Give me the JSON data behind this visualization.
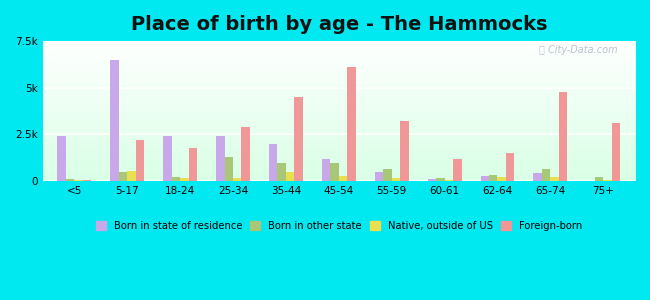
{
  "title": "Place of birth by age - The Hammocks",
  "categories": [
    "<5",
    "5-17",
    "18-24",
    "25-34",
    "35-44",
    "45-54",
    "55-59",
    "60-61",
    "62-64",
    "65-74",
    "75+"
  ],
  "series": {
    "Born in state of residence": [
      2400,
      6500,
      2400,
      2400,
      2000,
      1200,
      500,
      100,
      300,
      450,
      0
    ],
    "Born in other state": [
      120,
      500,
      250,
      1300,
      1000,
      1000,
      650,
      150,
      350,
      650,
      200
    ],
    "Native, outside of US": [
      80,
      550,
      150,
      150,
      500,
      300,
      150,
      50,
      250,
      200,
      80
    ],
    "Foreign-born": [
      80,
      2200,
      1800,
      2900,
      4500,
      6100,
      3200,
      1200,
      1500,
      4800,
      3100
    ]
  },
  "colors": {
    "Born in state of residence": "#c8a8e8",
    "Born in other state": "#a8c878",
    "Native, outside of US": "#e8e050",
    "Foreign-born": "#f09898"
  },
  "ylim": [
    0,
    7500
  ],
  "yticks": [
    0,
    2500,
    5000,
    7500
  ],
  "ytick_labels": [
    "0",
    "2.5k",
    "5k",
    "7.5k"
  ],
  "title_fontsize": 14,
  "outer_bg": "#00e8f0",
  "plot_bg": "#f0fff8"
}
